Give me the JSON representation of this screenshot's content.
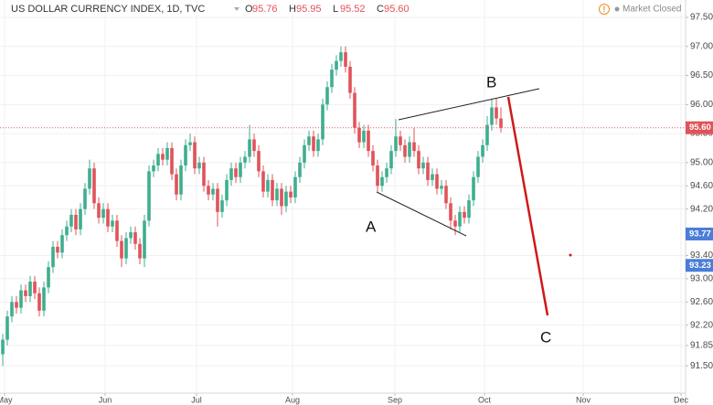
{
  "chart_data": {
    "type": "candlestick",
    "title": "US DOLLAR CURRENCY INDEX, 1D, TVC",
    "ohlc_legend": [
      {
        "key": "O",
        "text": "95.76"
      },
      {
        "key": "H",
        "text": "95.95"
      },
      {
        "key": "L",
        "text": "95.52"
      },
      {
        "key": "C",
        "text": "95.60"
      }
    ],
    "market_status": "Market Closed",
    "up_color": "#3fae8f",
    "down_color": "#e0535a",
    "grid": true,
    "ylim": [
      91.03,
      97.8
    ],
    "xlim": [
      -0.6,
      149.4
    ],
    "yticks": [
      {
        "value": 97.5,
        "label": "97.50"
      },
      {
        "value": 97,
        "label": "97.00"
      },
      {
        "value": 96.5,
        "label": "96.50"
      },
      {
        "value": 96,
        "label": "96.00"
      },
      {
        "value": 95.5,
        "label": "95.50"
      },
      {
        "value": 95,
        "label": "95.00"
      },
      {
        "value": 94.6,
        "label": "94.60"
      },
      {
        "value": 94.2,
        "label": "94.20"
      },
      {
        "value": 93.4,
        "label": "93.40"
      },
      {
        "value": 93,
        "label": "93.00"
      },
      {
        "value": 92.6,
        "label": "92.60"
      },
      {
        "value": 92.2,
        "label": "92.20"
      },
      {
        "value": 91.85,
        "label": "91.85"
      },
      {
        "value": 91.5,
        "label": "91.50"
      }
    ],
    "xticks": [
      {
        "value": 0.4,
        "label": "May"
      },
      {
        "value": 22.4,
        "label": "Jun"
      },
      {
        "value": 42.4,
        "label": "Jul"
      },
      {
        "value": 63.4,
        "label": "Aug"
      },
      {
        "value": 85.8,
        "label": "Sep"
      },
      {
        "value": 105.4,
        "label": "Oct"
      },
      {
        "value": 127,
        "label": "Nov"
      },
      {
        "value": 148.4,
        "label": "Dec"
      }
    ],
    "price_labels": [
      {
        "value": 95.6,
        "label": "95.60",
        "color": "#e0535a"
      },
      {
        "value": 93.77,
        "label": "93.77",
        "color": "#4a7ed8"
      },
      {
        "value": 93.23,
        "label": "93.23",
        "color": "#4a7ed8"
      }
    ],
    "annotations": [
      "A",
      "B",
      "C"
    ],
    "open": [
      91.7,
      91.95,
      92.35,
      92.6,
      92.5,
      92.8,
      92.7,
      92.95,
      92.75,
      92.45,
      92.85,
      93.2,
      93.55,
      93.45,
      93.75,
      93.9,
      94.1,
      93.85,
      94.2,
      94.55,
      94.9,
      94.3,
      94.05,
      94.2,
      93.9,
      94.0,
      93.65,
      93.35,
      93.7,
      93.8,
      93.6,
      93.35,
      94.0,
      94.85,
      94.95,
      95.15,
      95.05,
      95.25,
      94.8,
      94.45,
      94.95,
      95.3,
      95.35,
      94.9,
      95.0,
      94.6,
      94.45,
      94.55,
      94.15,
      94.35,
      94.7,
      94.9,
      94.75,
      95.0,
      95.1,
      95.4,
      95.2,
      94.85,
      94.5,
      94.7,
      94.35,
      94.55,
      94.25,
      94.5,
      94.4,
      94.75,
      95.0,
      95.3,
      95.45,
      95.2,
      95.4,
      96.0,
      96.3,
      96.6,
      96.75,
      96.9,
      96.65,
      96.2,
      95.6,
      95.35,
      95.55,
      95.2,
      94.95,
      94.6,
      94.75,
      94.9,
      95.2,
      95.45,
      95.3,
      95.1,
      95.35,
      95.2,
      94.9,
      95.0,
      94.7,
      94.8,
      94.55,
      94.6,
      94.3,
      94.0,
      93.9,
      94.15,
      94.05,
      94.35,
      94.75,
      95.1,
      95.3,
      95.65,
      95.95,
      95.76
    ],
    "high": [
      92.05,
      92.45,
      92.7,
      92.7,
      92.9,
      92.9,
      93.05,
      93.05,
      92.85,
      92.95,
      93.3,
      93.65,
      93.65,
      93.85,
      94.0,
      94.2,
      94.2,
      94.3,
      94.65,
      95.05,
      95.0,
      94.4,
      94.3,
      94.3,
      94.1,
      94.1,
      93.75,
      93.8,
      93.9,
      93.9,
      93.7,
      94.1,
      94.95,
      95.05,
      95.25,
      95.25,
      95.35,
      95.35,
      94.9,
      95.05,
      95.4,
      95.5,
      95.45,
      95.1,
      95.1,
      94.7,
      94.65,
      94.65,
      94.45,
      94.8,
      95.0,
      95.0,
      95.1,
      95.2,
      95.65,
      95.5,
      95.3,
      94.95,
      94.8,
      94.8,
      94.65,
      94.65,
      94.6,
      94.6,
      94.85,
      95.1,
      95.4,
      95.55,
      95.55,
      95.5,
      96.1,
      96.4,
      96.7,
      96.85,
      97.0,
      97.0,
      96.75,
      96.3,
      95.7,
      95.65,
      95.65,
      95.3,
      95.05,
      94.85,
      95.0,
      95.3,
      95.75,
      95.55,
      95.4,
      95.45,
      95.6,
      95.3,
      95.1,
      95.1,
      94.9,
      94.9,
      94.7,
      94.7,
      94.4,
      94.1,
      94.25,
      94.25,
      94.45,
      94.85,
      95.2,
      95.4,
      95.8,
      96.1,
      96.1,
      95.95
    ],
    "low": [
      91.5,
      91.85,
      92.25,
      92.4,
      92.4,
      92.6,
      92.6,
      92.65,
      92.35,
      92.35,
      92.75,
      93.1,
      93.35,
      93.35,
      93.65,
      93.8,
      93.75,
      93.75,
      94.1,
      94.45,
      94.2,
      93.95,
      93.95,
      93.8,
      93.8,
      93.55,
      93.2,
      93.25,
      93.6,
      93.5,
      93.25,
      93.2,
      93.9,
      94.75,
      94.85,
      94.95,
      94.95,
      94.7,
      94.35,
      94.35,
      94.85,
      95.2,
      94.8,
      94.8,
      94.5,
      94.35,
      94.35,
      93.9,
      94.05,
      94.25,
      94.6,
      94.65,
      94.65,
      94.9,
      95.0,
      95.1,
      94.75,
      94.4,
      94.4,
      94.25,
      94.25,
      94.1,
      94.15,
      94.3,
      94.3,
      94.65,
      94.9,
      95.2,
      95.1,
      95.1,
      95.3,
      95.9,
      96.2,
      96.5,
      96.65,
      96.55,
      96.1,
      95.5,
      95.25,
      95.25,
      95.1,
      94.85,
      94.5,
      94.5,
      94.65,
      94.8,
      95.1,
      95.2,
      95.0,
      95.0,
      95.1,
      94.8,
      94.8,
      94.6,
      94.6,
      94.45,
      94.45,
      94.2,
      93.85,
      93.75,
      93.8,
      93.95,
      93.95,
      94.25,
      94.65,
      95.0,
      95.2,
      95.55,
      95.65,
      95.52
    ],
    "close": [
      91.95,
      92.35,
      92.6,
      92.5,
      92.8,
      92.7,
      92.95,
      92.75,
      92.45,
      92.85,
      93.2,
      93.55,
      93.45,
      93.75,
      93.9,
      94.1,
      93.85,
      94.2,
      94.55,
      94.9,
      94.3,
      94.05,
      94.2,
      93.9,
      94.0,
      93.65,
      93.35,
      93.7,
      93.8,
      93.6,
      93.35,
      94.0,
      94.85,
      94.95,
      95.15,
      95.05,
      95.25,
      94.8,
      94.45,
      94.95,
      95.3,
      95.35,
      94.9,
      95.0,
      94.6,
      94.45,
      94.55,
      94.15,
      94.35,
      94.7,
      94.9,
      94.75,
      95.0,
      95.1,
      95.4,
      95.2,
      94.85,
      94.5,
      94.7,
      94.35,
      94.55,
      94.25,
      94.5,
      94.4,
      94.75,
      95.0,
      95.3,
      95.45,
      95.2,
      95.4,
      96.0,
      96.3,
      96.6,
      96.75,
      96.9,
      96.65,
      96.2,
      95.6,
      95.35,
      95.55,
      95.2,
      94.95,
      94.6,
      94.75,
      94.9,
      95.2,
      95.45,
      95.3,
      95.1,
      95.35,
      95.2,
      94.9,
      95.0,
      94.7,
      94.8,
      94.55,
      94.6,
      94.3,
      94.0,
      93.9,
      94.15,
      94.05,
      94.35,
      94.75,
      95.1,
      95.3,
      95.65,
      95.95,
      95.76,
      95.6
    ]
  }
}
